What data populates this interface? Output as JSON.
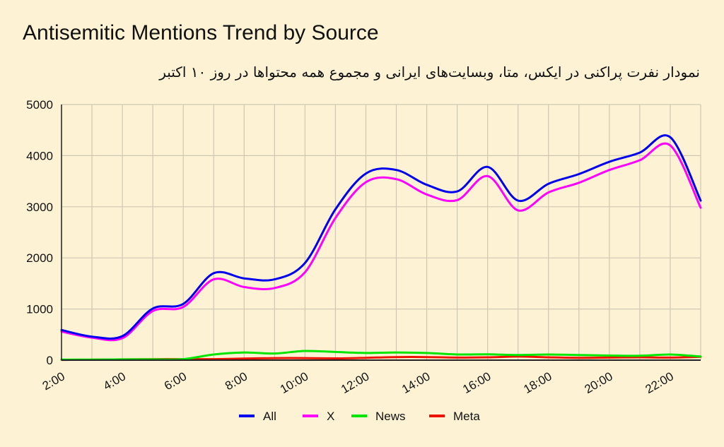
{
  "chart_data": {
    "type": "line",
    "title": "Antisemitic Mentions Trend by Source",
    "subtitle": "نمودار نفرت پراکنی در ایکس، متا، وبسایت‌های ایرانی و مجموع همه محتواها در روز ۱۰ اکتبر",
    "xlabel": "",
    "ylabel": "",
    "ylim": [
      0,
      5000
    ],
    "xlim": [
      2,
      23
    ],
    "y_ticks": [
      "0",
      "1000",
      "2000",
      "3000",
      "4000",
      "5000"
    ],
    "x_ticks": [
      "2:00",
      "4:00",
      "6:00",
      "8:00",
      "10:00",
      "12:00",
      "14:00",
      "16:00",
      "18:00",
      "20:00",
      "22:00"
    ],
    "grid": true,
    "legend_position": "bottom",
    "x": [
      2,
      3,
      4,
      5,
      6,
      7,
      8,
      9,
      10,
      11,
      12,
      13,
      14,
      15,
      16,
      17,
      18,
      19,
      20,
      21,
      22,
      23
    ],
    "series": [
      {
        "name": "All",
        "color": "#0000ee",
        "values": [
          590,
          460,
          470,
          1010,
          1100,
          1700,
          1600,
          1580,
          1900,
          2950,
          3650,
          3720,
          3430,
          3300,
          3780,
          3120,
          3450,
          3640,
          3880,
          4060,
          4360,
          3120
        ]
      },
      {
        "name": "X",
        "color": "#ff00ff",
        "values": [
          560,
          440,
          430,
          960,
          1040,
          1580,
          1430,
          1410,
          1720,
          2780,
          3480,
          3540,
          3240,
          3130,
          3600,
          2930,
          3280,
          3470,
          3720,
          3910,
          4200,
          2980
        ]
      },
      {
        "name": "News",
        "color": "#00e600",
        "values": [
          10,
          10,
          15,
          15,
          20,
          110,
          150,
          130,
          180,
          160,
          140,
          150,
          140,
          110,
          115,
          100,
          110,
          100,
          90,
          85,
          110,
          70
        ]
      },
      {
        "name": "Meta",
        "color": "#ee1100",
        "values": [
          5,
          10,
          15,
          20,
          20,
          20,
          30,
          40,
          40,
          35,
          45,
          60,
          60,
          50,
          55,
          70,
          55,
          45,
          50,
          55,
          50,
          65
        ]
      }
    ]
  }
}
